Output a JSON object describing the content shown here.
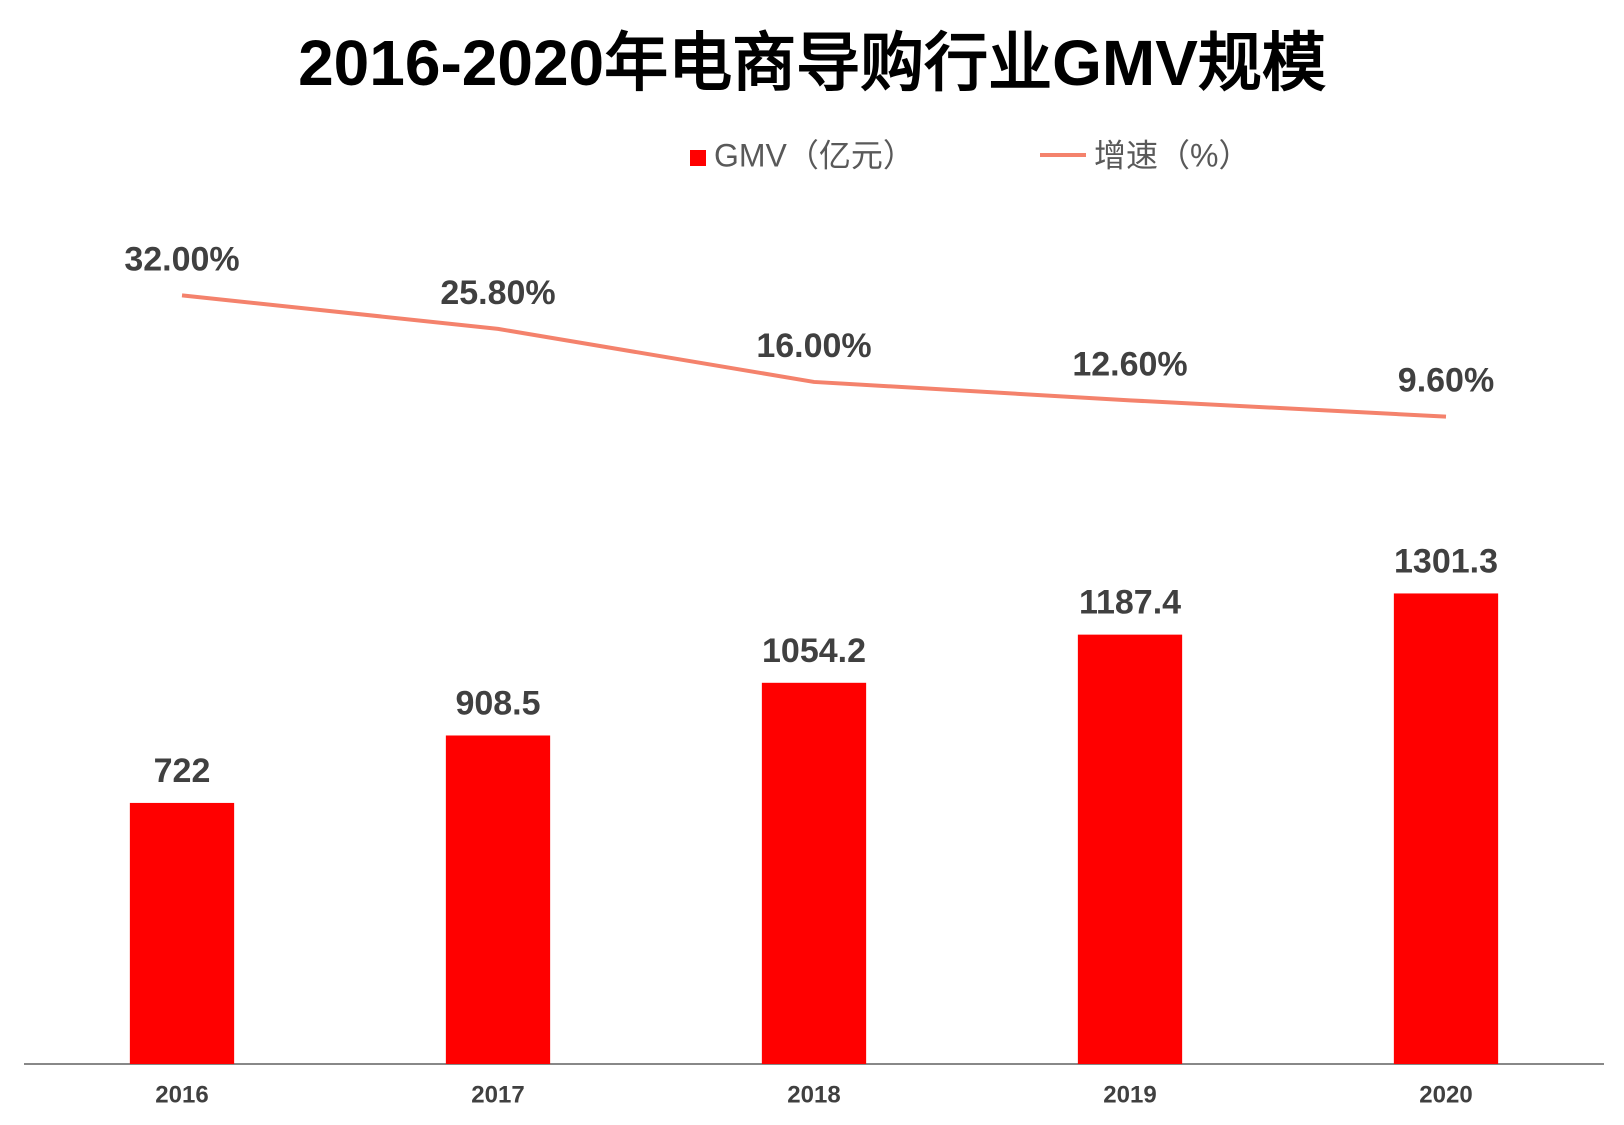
{
  "chart_data": {
    "type": "bar",
    "title": "2016-2020年电商导购行业GMV规模",
    "categories": [
      "2016",
      "2017",
      "2018",
      "2019",
      "2020"
    ],
    "series": [
      {
        "name": "GMV（亿元）",
        "type": "bar",
        "color": "#ff0000",
        "values": [
          722,
          908.5,
          1054.2,
          1187.4,
          1301.3
        ]
      },
      {
        "name": "增速（%）",
        "type": "line",
        "axis": "y2",
        "color": "#f4826c",
        "values": [
          32,
          25.8,
          16,
          12.6,
          9.6
        ],
        "value_labels": [
          "32.00%",
          "25.80%",
          "16.00%",
          "12.60%",
          "9.60%"
        ]
      }
    ],
    "ylim": [
      0,
      2500
    ],
    "y2lim": [
      -110,
      57
    ],
    "legend": "top"
  }
}
